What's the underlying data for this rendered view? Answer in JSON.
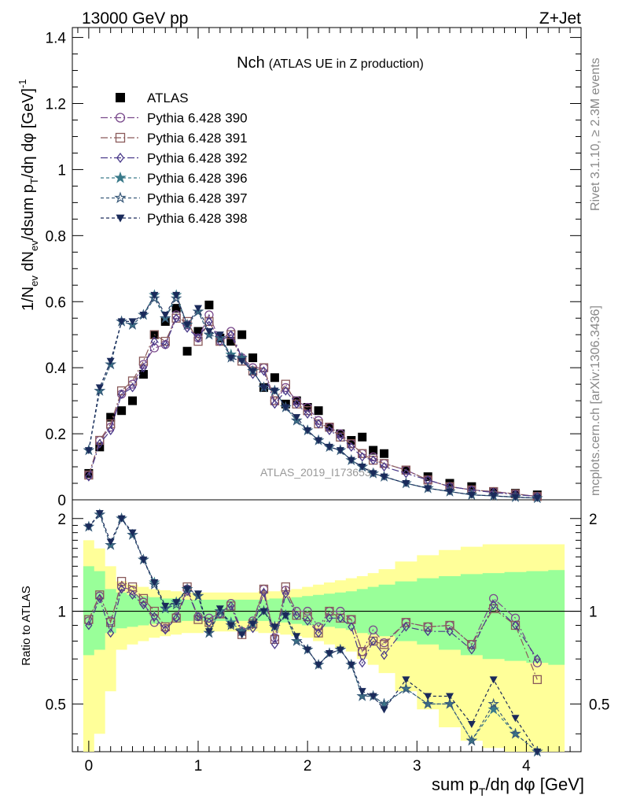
{
  "header": {
    "left": "13000 GeV pp",
    "right": "Z+Jet"
  },
  "side": {
    "rivet": "Rivet 3.1.10, ≥ 2.3M events",
    "mcplots": "mcplots.cern.ch [arXiv:1306.3436]"
  },
  "watermark": "ATLAS_2019_I1736531",
  "chart_data": [
    {
      "type": "scatter",
      "title_main": "Nch",
      "title_sub": "(ATLAS UE in Z production)",
      "ylabel": "1/N_ev dN_ev/dsum p_T/dη dφ [GeV]^-1",
      "xlim": [
        -0.15,
        4.5
      ],
      "ylim": [
        0,
        1.43
      ],
      "yticks": [
        0,
        0.2,
        0.4,
        0.6,
        0.8,
        1,
        1.2,
        1.4
      ],
      "ytick_labels": [
        "0",
        "0.2",
        "0.4",
        "0.6",
        "0.8",
        "1",
        "1.2",
        "1.4"
      ],
      "x": [
        0.0,
        0.1,
        0.2,
        0.3,
        0.4,
        0.5,
        0.6,
        0.7,
        0.8,
        0.9,
        1.0,
        1.1,
        1.2,
        1.3,
        1.4,
        1.5,
        1.6,
        1.7,
        1.8,
        1.9,
        2.0,
        2.1,
        2.2,
        2.3,
        2.4,
        2.5,
        2.6,
        2.7,
        2.9,
        3.1,
        3.3,
        3.5,
        3.7,
        3.9,
        4.1
      ],
      "series": [
        {
          "name": "ATLAS",
          "color": "#000000",
          "marker": "square-filled",
          "line": "none",
          "values": [
            0.08,
            0.16,
            0.25,
            0.27,
            0.3,
            0.38,
            0.5,
            0.54,
            0.58,
            0.45,
            0.51,
            0.59,
            0.49,
            0.48,
            0.5,
            0.43,
            0.34,
            0.37,
            0.29,
            0.3,
            0.28,
            0.27,
            0.22,
            0.2,
            0.18,
            0.19,
            0.15,
            0.14,
            0.09,
            0.07,
            0.05,
            0.04,
            0.025,
            0.02,
            0.015
          ]
        },
        {
          "name": "Pythia 6.428 390",
          "color": "#7a4a8c",
          "marker": "circle-open",
          "dash": "9,3,2,3",
          "values": [
            0.075,
            0.18,
            0.22,
            0.32,
            0.35,
            0.41,
            0.46,
            0.47,
            0.56,
            0.53,
            0.49,
            0.56,
            0.48,
            0.51,
            0.43,
            0.4,
            0.4,
            0.3,
            0.34,
            0.3,
            0.28,
            0.24,
            0.22,
            0.2,
            0.17,
            0.14,
            0.13,
            0.11,
            0.09,
            0.06,
            0.04,
            0.03,
            0.025,
            0.018,
            0.01
          ]
        },
        {
          "name": "Pythia 6.428 391",
          "color": "#8a5a5a",
          "marker": "square-open",
          "dash": "9,3,2,3",
          "values": [
            0.075,
            0.18,
            0.23,
            0.33,
            0.36,
            0.42,
            0.5,
            0.48,
            0.55,
            0.54,
            0.48,
            0.54,
            0.48,
            0.5,
            0.42,
            0.39,
            0.4,
            0.3,
            0.35,
            0.29,
            0.27,
            0.23,
            0.22,
            0.19,
            0.17,
            0.14,
            0.12,
            0.11,
            0.09,
            0.06,
            0.04,
            0.03,
            0.025,
            0.018,
            0.01
          ]
        },
        {
          "name": "Pythia 6.428 392",
          "color": "#4a3a8a",
          "marker": "diamond-open",
          "dash": "9,3,2,3",
          "values": [
            0.07,
            0.17,
            0.21,
            0.32,
            0.34,
            0.4,
            0.48,
            0.47,
            0.55,
            0.52,
            0.49,
            0.54,
            0.48,
            0.5,
            0.43,
            0.38,
            0.39,
            0.29,
            0.33,
            0.29,
            0.26,
            0.23,
            0.21,
            0.19,
            0.16,
            0.13,
            0.12,
            0.1,
            0.08,
            0.06,
            0.04,
            0.03,
            0.022,
            0.016,
            0.01
          ]
        },
        {
          "name": "Pythia 6.428 396",
          "color": "#3a7a8a",
          "marker": "star-filled",
          "dash": "4,3",
          "values": [
            0.15,
            0.33,
            0.41,
            0.54,
            0.53,
            0.56,
            0.62,
            0.55,
            0.62,
            0.53,
            0.57,
            0.5,
            0.49,
            0.44,
            0.43,
            0.39,
            0.34,
            0.33,
            0.28,
            0.24,
            0.21,
            0.18,
            0.16,
            0.15,
            0.12,
            0.1,
            0.08,
            0.07,
            0.05,
            0.035,
            0.025,
            0.015,
            0.012,
            0.008,
            0.005
          ]
        },
        {
          "name": "Pythia 6.428 397",
          "color": "#3a5a7a",
          "marker": "star-open",
          "dash": "4,3",
          "values": [
            0.15,
            0.33,
            0.41,
            0.54,
            0.53,
            0.56,
            0.61,
            0.55,
            0.61,
            0.53,
            0.57,
            0.5,
            0.49,
            0.43,
            0.43,
            0.39,
            0.34,
            0.33,
            0.28,
            0.24,
            0.21,
            0.18,
            0.16,
            0.15,
            0.12,
            0.1,
            0.08,
            0.07,
            0.05,
            0.035,
            0.025,
            0.015,
            0.012,
            0.008,
            0.005
          ]
        },
        {
          "name": "Pythia 6.428 398",
          "color": "#1a2a5a",
          "marker": "triangle-down-filled",
          "dash": "4,3",
          "values": [
            0.15,
            0.34,
            0.42,
            0.54,
            0.54,
            0.56,
            0.62,
            0.56,
            0.62,
            0.53,
            0.58,
            0.51,
            0.5,
            0.43,
            0.42,
            0.39,
            0.34,
            0.33,
            0.28,
            0.25,
            0.21,
            0.18,
            0.16,
            0.15,
            0.12,
            0.1,
            0.08,
            0.07,
            0.05,
            0.035,
            0.025,
            0.015,
            0.012,
            0.008,
            0.005
          ]
        }
      ],
      "legend_position": "top-left"
    },
    {
      "type": "scatter",
      "ylabel": "Ratio to ATLAS",
      "xlabel": "sum p_T/dη dφ [GeV]",
      "xlim": [
        -0.15,
        4.5
      ],
      "ylim": [
        0.35,
        2.3
      ],
      "yticks": [
        0.5,
        1,
        2
      ],
      "ytick_labels": [
        "0.5",
        "1",
        "2"
      ],
      "xticks": [
        0,
        1,
        2,
        3,
        4
      ],
      "xtick_labels": [
        "0",
        "1",
        "2",
        "3",
        "4"
      ],
      "reference_line": 1,
      "bands": {
        "x": [
          -0.05,
          0.05,
          0.15,
          0.25,
          0.35,
          0.45,
          0.55,
          0.65,
          0.75,
          0.85,
          0.95,
          1.05,
          1.15,
          1.25,
          1.35,
          1.45,
          1.55,
          1.65,
          1.75,
          1.85,
          1.95,
          2.05,
          2.15,
          2.25,
          2.35,
          2.45,
          2.55,
          2.65,
          2.8,
          3.0,
          3.2,
          3.4,
          3.6,
          3.8,
          4.0,
          4.2,
          4.35
        ],
        "outer_lower": [
          0.35,
          0.4,
          0.55,
          0.75,
          0.78,
          0.8,
          0.82,
          0.83,
          0.84,
          0.85,
          0.85,
          0.86,
          0.86,
          0.86,
          0.86,
          0.86,
          0.85,
          0.85,
          0.84,
          0.83,
          0.82,
          0.8,
          0.78,
          0.76,
          0.74,
          0.7,
          0.67,
          0.63,
          0.55,
          0.48,
          0.42,
          0.38,
          0.36,
          0.35,
          0.35,
          0.35
        ],
        "outer_upper": [
          1.7,
          1.6,
          1.4,
          1.25,
          1.22,
          1.2,
          1.18,
          1.17,
          1.16,
          1.15,
          1.15,
          1.15,
          1.15,
          1.15,
          1.15,
          1.15,
          1.16,
          1.16,
          1.17,
          1.18,
          1.2,
          1.22,
          1.24,
          1.26,
          1.28,
          1.3,
          1.33,
          1.37,
          1.45,
          1.52,
          1.58,
          1.62,
          1.65,
          1.65,
          1.65,
          1.65
        ],
        "inner_lower": [
          0.72,
          0.75,
          0.85,
          0.88,
          0.89,
          0.9,
          0.91,
          0.92,
          0.92,
          0.93,
          0.93,
          0.93,
          0.93,
          0.93,
          0.93,
          0.93,
          0.93,
          0.92,
          0.92,
          0.91,
          0.9,
          0.9,
          0.89,
          0.88,
          0.87,
          0.85,
          0.84,
          0.83,
          0.8,
          0.78,
          0.75,
          0.72,
          0.7,
          0.69,
          0.68,
          0.67
        ],
        "inner_upper": [
          1.4,
          1.35,
          1.18,
          1.15,
          1.13,
          1.12,
          1.11,
          1.1,
          1.1,
          1.09,
          1.09,
          1.09,
          1.09,
          1.09,
          1.09,
          1.09,
          1.09,
          1.1,
          1.1,
          1.11,
          1.12,
          1.13,
          1.14,
          1.15,
          1.16,
          1.18,
          1.2,
          1.22,
          1.25,
          1.28,
          1.3,
          1.32,
          1.33,
          1.34,
          1.35,
          1.36
        ],
        "outer_color": "#ffff99",
        "inner_color": "#99ff99"
      },
      "x": [
        0.0,
        0.1,
        0.2,
        0.3,
        0.4,
        0.5,
        0.6,
        0.7,
        0.8,
        0.9,
        1.0,
        1.1,
        1.2,
        1.3,
        1.4,
        1.5,
        1.6,
        1.7,
        1.8,
        1.9,
        2.0,
        2.1,
        2.2,
        2.3,
        2.4,
        2.5,
        2.6,
        2.7,
        2.9,
        3.1,
        3.3,
        3.5,
        3.7,
        3.9,
        4.1
      ],
      "series": [
        {
          "name": "Pythia 6.428 390",
          "values": [
            0.93,
            1.12,
            0.93,
            1.2,
            1.17,
            1.07,
            0.92,
            0.88,
            0.96,
            1.18,
            0.96,
            0.95,
            0.98,
            1.06,
            0.86,
            0.93,
            1.18,
            0.82,
            1.17,
            1.0,
            1.0,
            0.89,
            1.0,
            1.0,
            0.94,
            0.74,
            0.87,
            0.79,
            0.92,
            0.89,
            0.9,
            0.78,
            1.1,
            0.95,
            0.68
          ]
        },
        {
          "name": "Pythia 6.428 391",
          "values": [
            0.94,
            1.13,
            0.92,
            1.25,
            1.2,
            1.1,
            1.0,
            0.89,
            0.95,
            1.2,
            0.94,
            0.92,
            0.98,
            1.04,
            0.84,
            0.91,
            1.18,
            0.81,
            1.2,
            0.97,
            0.96,
            0.85,
            1.0,
            0.95,
            0.94,
            0.74,
            0.8,
            0.78,
            0.92,
            0.89,
            0.9,
            0.78,
            1.02,
            0.9,
            0.6
          ]
        },
        {
          "name": "Pythia 6.428 392",
          "values": [
            0.9,
            1.1,
            0.85,
            1.18,
            1.13,
            1.05,
            0.96,
            0.87,
            0.95,
            1.16,
            0.96,
            0.92,
            0.98,
            1.04,
            0.86,
            0.88,
            1.15,
            0.78,
            1.14,
            0.97,
            0.93,
            0.85,
            0.95,
            0.95,
            0.89,
            0.68,
            0.8,
            0.72,
            0.89,
            0.86,
            0.86,
            0.75,
            1.05,
            0.9,
            0.7
          ]
        },
        {
          "name": "Pythia 6.428 396",
          "values": [
            1.88,
            2.06,
            1.64,
            2.0,
            1.77,
            1.47,
            1.24,
            1.02,
            1.07,
            1.18,
            1.12,
            0.85,
            1.0,
            0.92,
            0.86,
            0.91,
            1.0,
            0.89,
            0.97,
            0.8,
            0.75,
            0.67,
            0.73,
            0.75,
            0.67,
            0.53,
            0.53,
            0.5,
            0.56,
            0.5,
            0.5,
            0.38,
            0.48,
            0.4,
            0.33
          ]
        },
        {
          "name": "Pythia 6.428 397",
          "values": [
            1.88,
            2.06,
            1.64,
            2.0,
            1.77,
            1.47,
            1.22,
            1.02,
            1.05,
            1.18,
            1.12,
            0.85,
            1.0,
            0.9,
            0.86,
            0.91,
            1.0,
            0.89,
            0.97,
            0.8,
            0.75,
            0.67,
            0.73,
            0.75,
            0.67,
            0.53,
            0.53,
            0.5,
            0.56,
            0.5,
            0.5,
            0.38,
            0.5,
            0.4,
            0.33
          ]
        },
        {
          "name": "Pythia 6.428 398",
          "values": [
            1.88,
            2.08,
            1.68,
            2.0,
            1.8,
            1.47,
            1.24,
            1.04,
            1.07,
            1.18,
            1.14,
            0.86,
            1.02,
            0.9,
            0.84,
            0.91,
            1.0,
            0.89,
            0.97,
            0.83,
            0.75,
            0.67,
            0.73,
            0.75,
            0.67,
            0.55,
            0.53,
            0.48,
            0.6,
            0.53,
            0.53,
            0.43,
            0.6,
            0.45,
            0.35
          ]
        }
      ]
    }
  ]
}
